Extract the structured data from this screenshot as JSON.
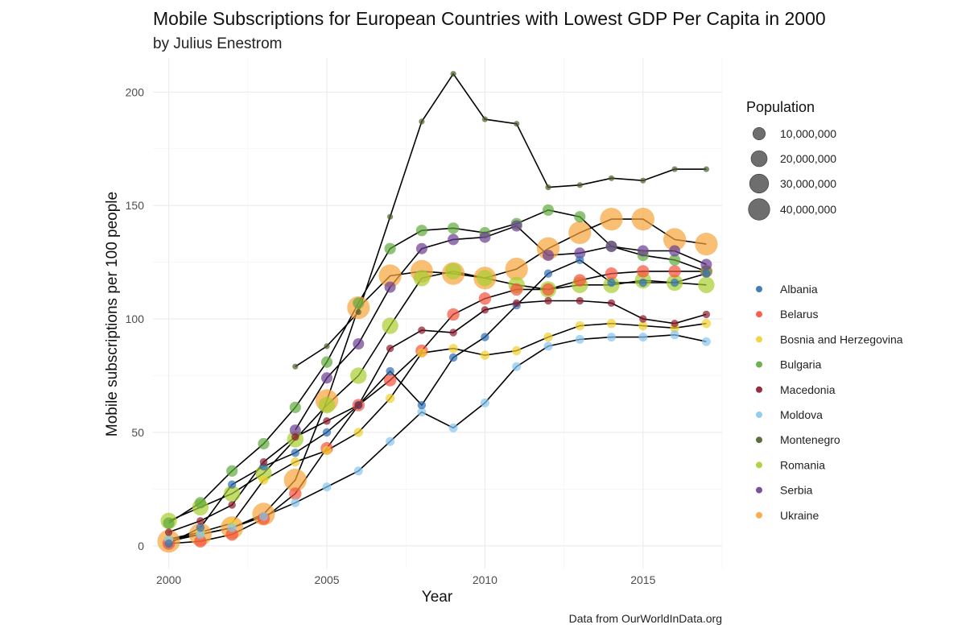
{
  "chart_data": {
    "type": "scatter",
    "title": "Mobile Subscriptions for European Countries with Lowest GDP Per Capita in 2000",
    "subtitle": "by Julius Enestrom",
    "xlabel": "Year",
    "ylabel": "Mobile subscriptions per 100 people",
    "caption": "Data from OurWorldInData.org",
    "xlim": [
      1999.5,
      2017.5
    ],
    "ylim": [
      -10,
      215
    ],
    "x_ticks": [
      2000,
      2005,
      2010,
      2015
    ],
    "x_tick_labels": [
      "2000",
      "2005",
      "2010",
      "2015"
    ],
    "y_ticks": [
      0,
      50,
      100,
      150,
      200
    ],
    "y_tick_labels": [
      "0",
      "50",
      "100",
      "150",
      "200"
    ],
    "grid": true,
    "lines_color": "#000000",
    "point_opacity": 0.7,
    "size_legend": {
      "title": "Population",
      "color": "#555555",
      "entries": [
        {
          "label": "10,000,000",
          "value": 10000000
        },
        {
          "label": "20,000,000",
          "value": 20000000
        },
        {
          "label": "30,000,000",
          "value": 30000000
        },
        {
          "label": "40,000,000",
          "value": 40000000
        }
      ]
    },
    "x": [
      2000,
      2001,
      2002,
      2003,
      2004,
      2005,
      2006,
      2007,
      2008,
      2009,
      2010,
      2011,
      2012,
      2013,
      2014,
      2015,
      2016,
      2017
    ],
    "series": [
      {
        "name": "Albania",
        "color": "#2f6fb3",
        "population_millions": 3,
        "values": [
          1,
          8,
          27,
          35,
          41,
          50,
          62,
          77,
          62,
          83,
          92,
          106,
          120,
          126,
          116,
          116,
          116,
          120
        ]
      },
      {
        "name": "Belarus",
        "color": "#f5513b",
        "population_millions": 10,
        "values": [
          1,
          2,
          5,
          12,
          23,
          43,
          62,
          73,
          86,
          102,
          109,
          113,
          113,
          117,
          120,
          121,
          121,
          121
        ]
      },
      {
        "name": "Bosnia and Herzegovina",
        "color": "#f2d02e",
        "population_millions": 4,
        "values": [
          3,
          6,
          10,
          29,
          37,
          42,
          50,
          65,
          85,
          87,
          84,
          86,
          92,
          97,
          98,
          97,
          96,
          98
        ]
      },
      {
        "name": "Bulgaria",
        "color": "#5fa93c",
        "population_millions": 8,
        "values": [
          10,
          19,
          33,
          45,
          61,
          81,
          107,
          131,
          139,
          140,
          138,
          142,
          148,
          145,
          132,
          128,
          126,
          121
        ]
      },
      {
        "name": "Macedonia",
        "color": "#8b1a2b",
        "population_millions": 2,
        "values": [
          6,
          11,
          18,
          37,
          48,
          55,
          62,
          87,
          95,
          94,
          104,
          107,
          108,
          108,
          107,
          100,
          98,
          102
        ]
      },
      {
        "name": "Moldova",
        "color": "#87c6f0",
        "population_millions": 3.5,
        "values": [
          3,
          5,
          8,
          13,
          19,
          26,
          33,
          46,
          59,
          52,
          63,
          79,
          88,
          91,
          92,
          92,
          93,
          90
        ]
      },
      {
        "name": "Montenegro",
        "color": "#4a5e2a",
        "population_millions": 0.6,
        "values": [
          null,
          null,
          null,
          null,
          79,
          88,
          103,
          145,
          187,
          208,
          188,
          186,
          158,
          159,
          162,
          161,
          166,
          166
        ]
      },
      {
        "name": "Romania",
        "color": "#a8cf2f",
        "population_millions": 21,
        "values": [
          11,
          17,
          23,
          32,
          47,
          62,
          75,
          97,
          118,
          121,
          118,
          115,
          113,
          115,
          115,
          117,
          116,
          115
        ]
      },
      {
        "name": "Serbia",
        "color": "#6a3d91",
        "population_millions": 7.5,
        "values": [
          null,
          null,
          null,
          null,
          51,
          74,
          89,
          114,
          131,
          135,
          136,
          141,
          128,
          129,
          132,
          130,
          130,
          124
        ]
      },
      {
        "name": "Ukraine",
        "color": "#f7a43b",
        "population_millions": 46,
        "values": [
          2,
          5,
          8,
          14,
          29,
          64,
          105,
          119,
          121,
          120,
          118,
          122,
          131,
          138,
          144,
          144,
          135,
          133
        ]
      }
    ]
  }
}
